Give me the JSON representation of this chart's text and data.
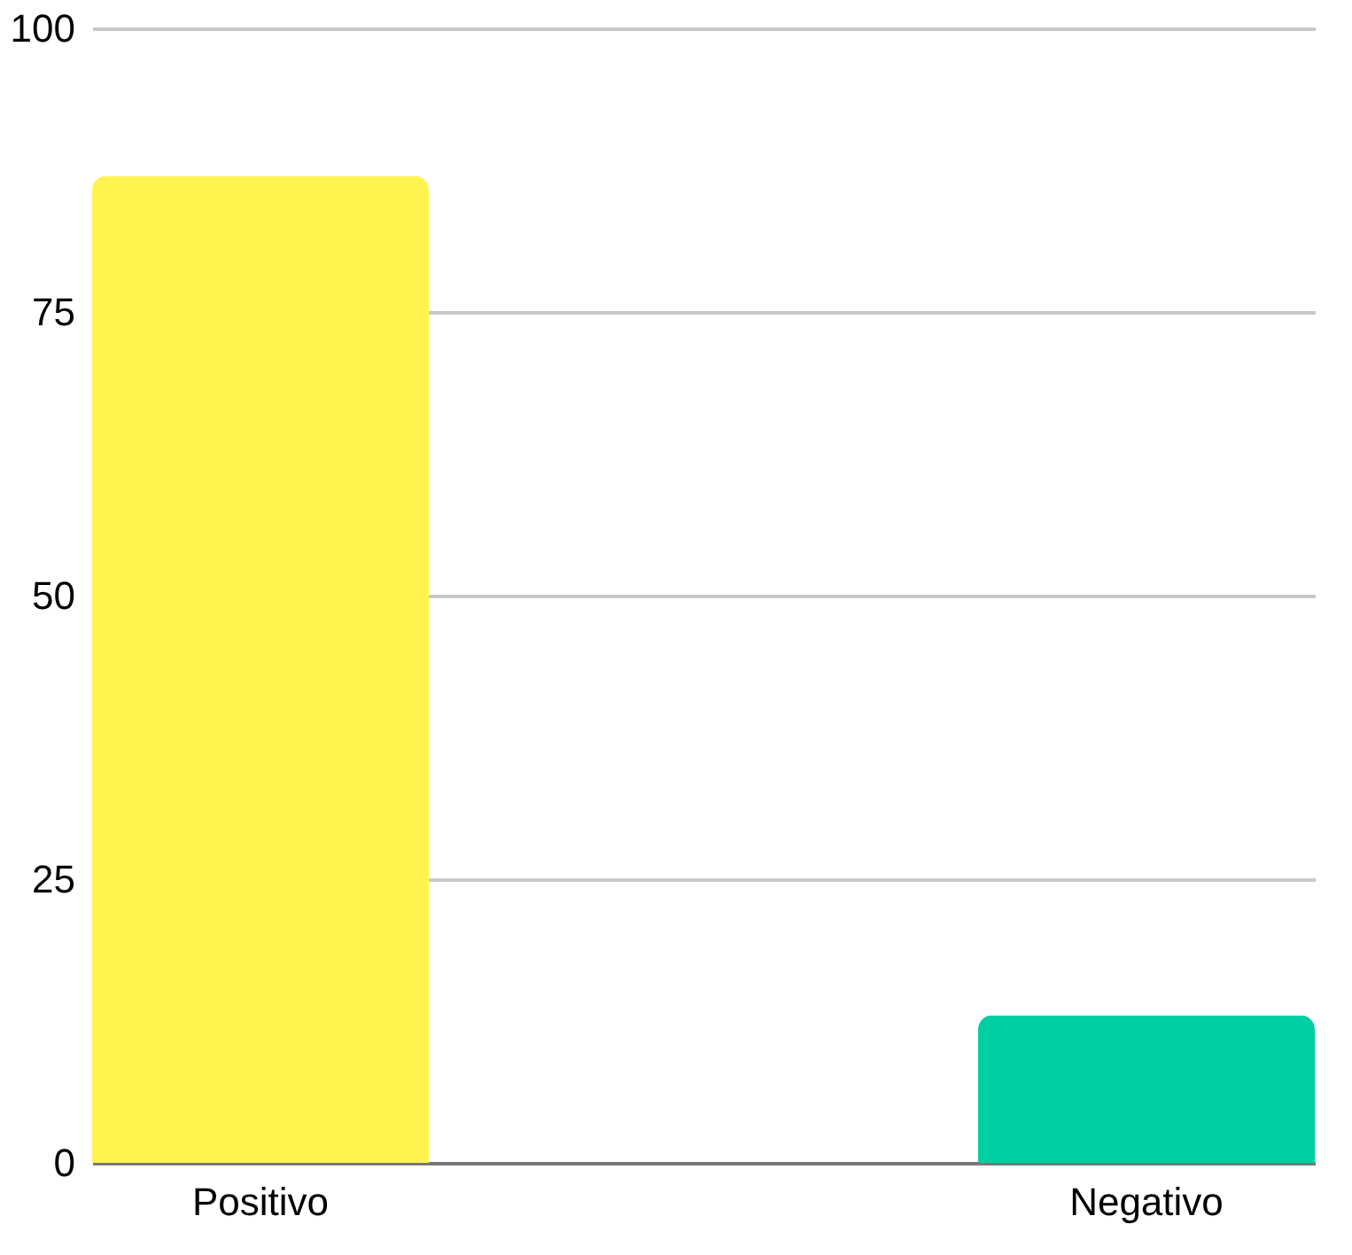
{
  "chart_data": {
    "type": "bar",
    "categories": [
      "Positivo",
      "Negativo"
    ],
    "values": [
      87,
      13
    ],
    "colors": [
      "#fff44f",
      "#00cfa4"
    ],
    "ylim": [
      0,
      100
    ],
    "yticks": [
      0,
      25,
      50,
      75,
      100
    ],
    "grid": "y"
  }
}
